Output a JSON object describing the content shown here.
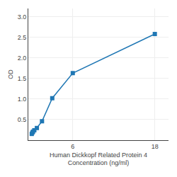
{
  "chart_data": {
    "type": "line",
    "x": [
      0.0,
      0.094,
      0.188,
      0.375,
      0.75,
      1.5,
      3.0,
      6.0,
      18.0
    ],
    "values": [
      0.152,
      0.184,
      0.208,
      0.241,
      0.296,
      0.46,
      1.02,
      1.63,
      2.58
    ],
    "xlabel": "Human Dickkopf Related Protein 4\nConcentration (ng/ml)",
    "ylabel": "OD",
    "xlim": [
      -0.5,
      20
    ],
    "ylim": [
      0.0,
      3.2
    ],
    "xticks": [
      6,
      18
    ],
    "yticks": [
      0.5,
      {
        "value": 1.0,
        "label": "1.0"
      },
      1.5,
      {
        "value": 2.0,
        "label": "2.0"
      },
      2.5,
      {
        "value": 3.0,
        "label": "3.0"
      }
    ],
    "grid": true,
    "marker": "square"
  }
}
